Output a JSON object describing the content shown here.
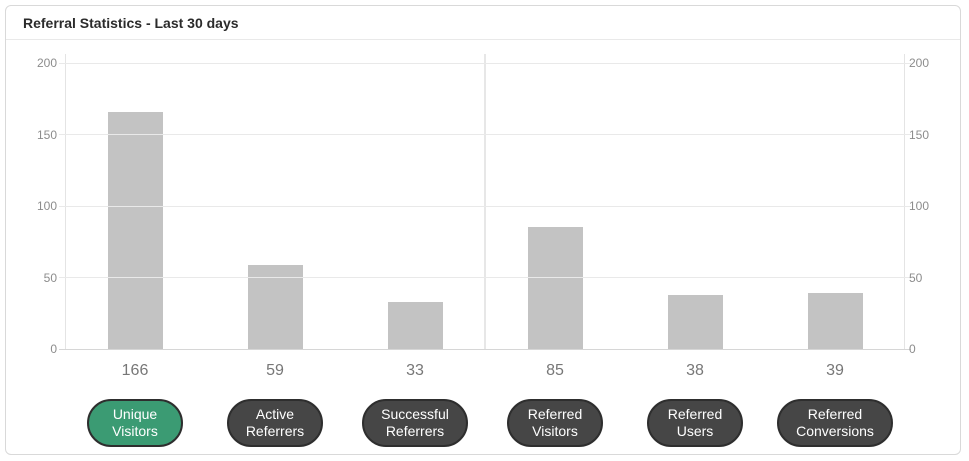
{
  "header": {
    "title": "Referral Statistics - Last 30 days"
  },
  "chart_data": {
    "type": "bar",
    "title": "Referral Statistics - Last 30 days",
    "categories": [
      "Unique Visitors",
      "Active Referrers",
      "Successful Referrers",
      "Referred Visitors",
      "Referred Users",
      "Referred Conversions"
    ],
    "values": [
      166,
      59,
      33,
      85,
      38,
      39
    ],
    "x_value_labels": [
      "166",
      "59",
      "33",
      "85",
      "38",
      "39"
    ],
    "xlabel": "",
    "ylabel": "",
    "ylim": [
      0,
      200
    ],
    "yticks": [
      0,
      50,
      100,
      150,
      200
    ],
    "grid": true,
    "legend_position": "none",
    "dual_y_axis_labels": true,
    "divider_between_groups": true,
    "bar_color": "#c3c3c3"
  },
  "buttons": [
    {
      "label": "Unique Visitors",
      "lines": [
        "Unique",
        "Visitors"
      ],
      "active": true
    },
    {
      "label": "Active Referrers",
      "lines": [
        "Active",
        "Referrers"
      ],
      "active": false
    },
    {
      "label": "Successful Referrers",
      "lines": [
        "Successful",
        "Referrers"
      ],
      "active": false
    },
    {
      "label": "Referred Visitors",
      "lines": [
        "Referred",
        "Visitors"
      ],
      "active": false
    },
    {
      "label": "Referred Users",
      "lines": [
        "Referred",
        "Users"
      ],
      "active": false
    },
    {
      "label": "Referred Conversions",
      "lines": [
        "Referred",
        "Conversions"
      ],
      "active": false
    }
  ],
  "colors": {
    "active_button": "#3b9b73",
    "inactive_button": "#464646",
    "button_border": "#2e2e2e",
    "button_text": "#ffffff",
    "bar": "#c3c3c3",
    "grid_line": "#e9e9e9",
    "zero_line": "#d6d6d6",
    "tick_label": "#8c8c8c",
    "value_label": "#777777",
    "card_border": "#d9d9d9"
  }
}
